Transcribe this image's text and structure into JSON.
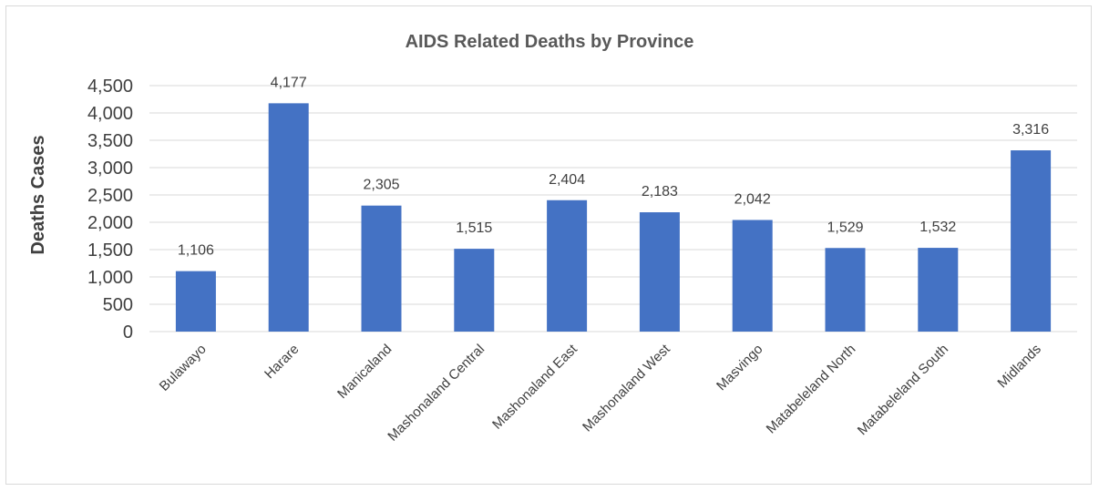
{
  "chart_data": {
    "type": "bar",
    "title": "AIDS Related Deaths by Province",
    "xlabel": "",
    "ylabel": "Deaths Cases",
    "categories": [
      "Bulawayo",
      "Harare",
      "Manicaland",
      "Mashonaland Central",
      "Mashonaland East",
      "Mashonaland West",
      "Masvingo",
      "Matabeleland North",
      "Matabeleland South",
      "Midlands"
    ],
    "values": [
      1106,
      4177,
      2305,
      1515,
      2404,
      2183,
      2042,
      1529,
      1532,
      3316
    ],
    "data_labels": [
      "1,106",
      "4,177",
      "2,305",
      "1,515",
      "2,404",
      "2,183",
      "2,042",
      "1,529",
      "1,532",
      "3,316"
    ],
    "ylim": [
      0,
      4500
    ],
    "yticks": [
      0,
      500,
      1000,
      1500,
      2000,
      2500,
      3000,
      3500,
      4000,
      4500
    ],
    "ytick_labels": [
      "0",
      "500",
      "1,000",
      "1,500",
      "2,000",
      "2,500",
      "3,000",
      "3,500",
      "4,000",
      "4,500"
    ],
    "grid": true,
    "legend": "none",
    "bar_color": "#4472c4",
    "grid_color": "#d9d9d9"
  }
}
